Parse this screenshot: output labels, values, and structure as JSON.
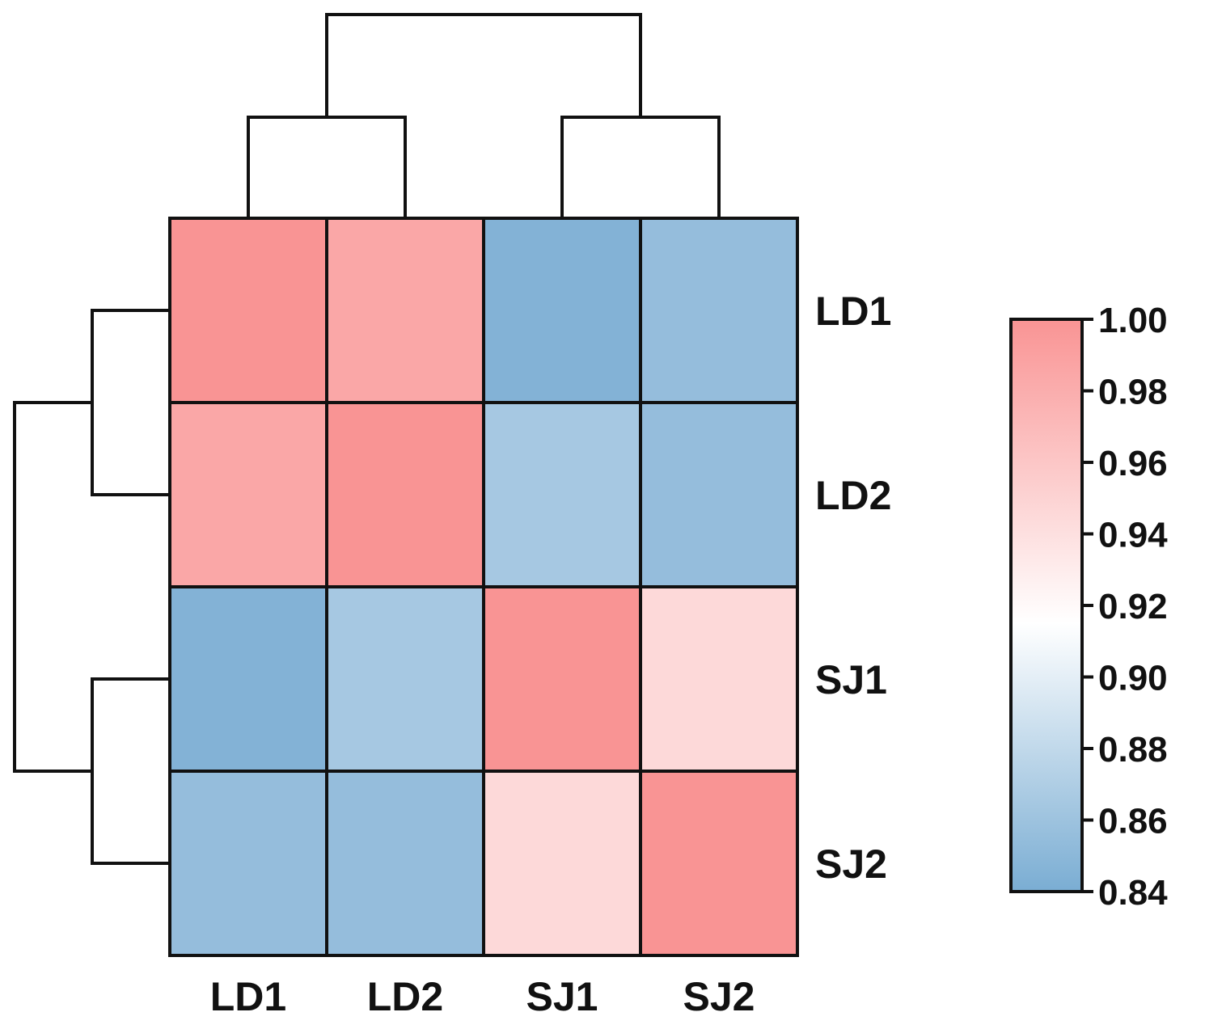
{
  "chart_data": {
    "type": "heatmap",
    "rows": [
      "LD1",
      "LD2",
      "SJ1",
      "SJ2"
    ],
    "columns": [
      "LD1",
      "LD2",
      "SJ1",
      "SJ2"
    ],
    "values": [
      [
        1.0,
        0.985,
        0.845,
        0.855
      ],
      [
        0.985,
        1.0,
        0.865,
        0.855
      ],
      [
        0.845,
        0.865,
        1.0,
        0.945
      ],
      [
        0.855,
        0.855,
        0.945,
        1.0
      ]
    ],
    "row_dendrogram": [
      [
        "LD1",
        "LD2"
      ],
      [
        "SJ1",
        "SJ2"
      ]
    ],
    "column_dendrogram": [
      [
        "LD1",
        "LD2"
      ],
      [
        "SJ1",
        "SJ2"
      ]
    ],
    "colorbar": {
      "range": [
        0.84,
        1.0
      ],
      "ticks": [
        "1.00",
        "0.98",
        "0.96",
        "0.94",
        "0.92",
        "0.90",
        "0.88",
        "0.86",
        "0.84"
      ],
      "color_low": "#7aadd3",
      "color_mid": "#ffffff",
      "color_high": "#f99494",
      "mid_value": 0.915
    },
    "title": "",
    "xlabel": "",
    "ylabel": ""
  }
}
